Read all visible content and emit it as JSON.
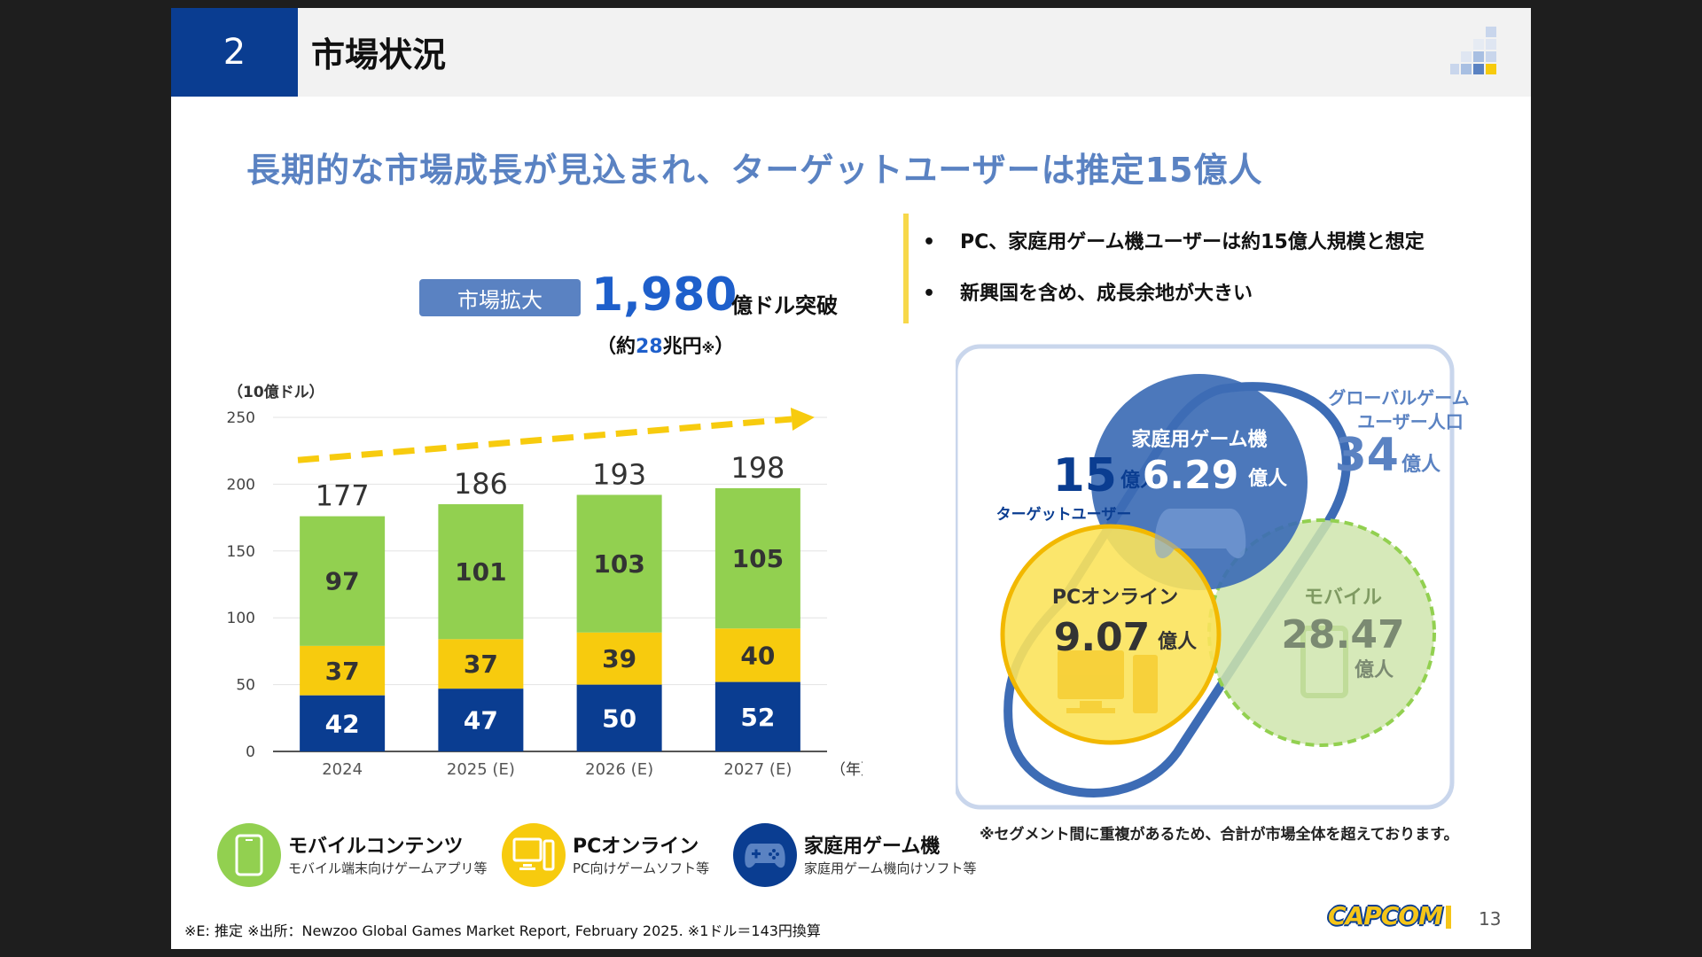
{
  "section_number": "2",
  "section_title": "市場状況",
  "headline": "長期的な市場成長が見込まれ、ターゲットユーザーは推定15億人",
  "bullets": [
    {
      "marker": "•",
      "text": "PC、家庭用ゲーム機ユーザーは約15億人規模と想定"
    },
    {
      "marker": "•",
      "text": "新興国を含め、成長余地が大きい"
    }
  ],
  "market": {
    "pill": "市場拡大",
    "value": "1,980",
    "unit": "億ドル突破",
    "sub_prefix": "（約",
    "sub_value": "28",
    "sub_suffix": "兆円",
    "sub_mark": "※",
    "sub_close": "）"
  },
  "chart_unit": "（10億ドル）",
  "chart_data": {
    "type": "bar",
    "stacked": true,
    "categories": [
      "2024",
      "2025 (E)",
      "2026 (E)",
      "2027 (E)"
    ],
    "x_unit": "（年）",
    "ylim": [
      0,
      250
    ],
    "yticks": [
      0,
      50,
      100,
      150,
      200,
      250
    ],
    "grid": true,
    "series": [
      {
        "key": "console",
        "values": [
          42,
          47,
          50,
          52
        ],
        "color": "#0a3d91"
      },
      {
        "key": "pc",
        "values": [
          37,
          37,
          39,
          40
        ],
        "color": "#f7cb0e"
      },
      {
        "key": "mobile",
        "values": [
          97,
          101,
          103,
          105
        ],
        "color": "#92d050"
      }
    ],
    "totals": [
      177,
      186,
      193,
      198
    ],
    "trend_arrow_color": "#f7cb0e"
  },
  "legend": [
    {
      "title": "モバイルコンテンツ",
      "sub": "モバイル端末向けゲームアプリ等",
      "color": "#92d050",
      "icon": "smartphone-icon"
    },
    {
      "title": "PCオンライン",
      "sub": "PC向けゲームソフト等",
      "color": "#f7cb0e",
      "icon": "pc-icon"
    },
    {
      "title": "家庭用ゲーム機",
      "sub": "家庭用ゲーム機向けソフト等",
      "color": "#0a3d91",
      "icon": "gamepad-icon"
    }
  ],
  "venn": {
    "target_value": "15",
    "target_unit": "億人",
    "target_label": "ターゲットユーザー",
    "global_label_1": "グローバルゲーム",
    "global_label_2": "ユーザー人口",
    "global_value": "34",
    "global_unit": "億人",
    "console": {
      "label": "家庭用ゲーム機",
      "value": "6.29",
      "unit": "億人",
      "color": "#3d6cb5"
    },
    "pc": {
      "label": "PCオンライン",
      "value": "9.07",
      "unit": "億人",
      "color": "#f7cb0e"
    },
    "mobile": {
      "label": "モバイル",
      "value": "28.47",
      "unit": "億人",
      "color": "#b9dd8a"
    }
  },
  "note": "※セグメント間に重複があるため、合計が市場全体を超えております。",
  "footer": "※E: 推定 ※出所：Newzoo Global Games Market Report, February 2025.  ※1ドル＝143円換算",
  "logo": "CAPCOM",
  "page_number": "13"
}
